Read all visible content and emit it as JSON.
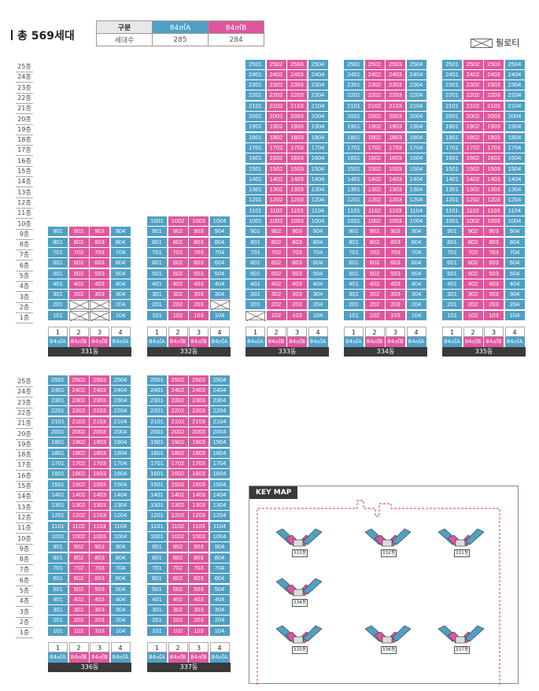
{
  "title": "총 569세대",
  "legend": {
    "header": "구분",
    "type_a": "84㎡A",
    "type_b": "84㎡B",
    "row_label": "세대수",
    "count_a": "285",
    "count_b": "284"
  },
  "piloti_label": "필로티",
  "floor_suffix": "층",
  "line_numbers": [
    "1",
    "2",
    "3",
    "4"
  ],
  "line_types": [
    "84㎡A",
    "84㎡B",
    "84㎡B",
    "84㎡A"
  ],
  "colors": {
    "type_a": "#4fa0c4",
    "type_b": "#e0569c",
    "name_bar": "#3a3a3a"
  },
  "buildings": [
    {
      "name": "331동",
      "floors": 9,
      "piloti": [
        "202",
        "203",
        "103",
        "102"
      ]
    },
    {
      "name": "332동",
      "floors": 10,
      "piloti": [
        "204"
      ]
    },
    {
      "name": "333동",
      "floors": 25,
      "piloti": [
        "101"
      ]
    },
    {
      "name": "334동",
      "floors": 25,
      "piloti": []
    },
    {
      "name": "335동",
      "floors": 25,
      "piloti": []
    },
    {
      "name": "336동",
      "floors": 25,
      "piloti": []
    },
    {
      "name": "337동",
      "floors": 25,
      "piloti": []
    }
  ],
  "keymap": {
    "title": "KEY MAP",
    "labels": [
      "333동",
      "332동",
      "331동",
      "334동",
      "336동",
      "335동",
      "337동"
    ]
  }
}
